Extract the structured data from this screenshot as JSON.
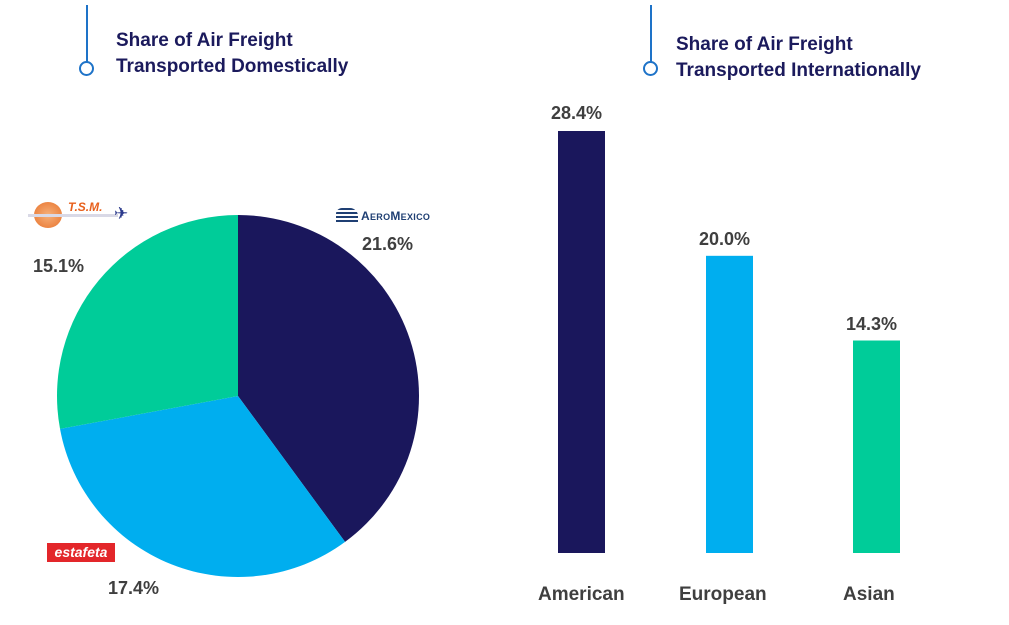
{
  "chart_data": [
    {
      "type": "pie",
      "title": "Share of Air Freight Transported Domestically",
      "title_lines": [
        "Share of Air Freight",
        "Transported Domestically"
      ],
      "slices": [
        {
          "name": "AeroMexico",
          "value": 21.6,
          "label": "21.6%",
          "color": "#1a175c"
        },
        {
          "name": "Estafeta",
          "value": 17.4,
          "label": "17.4%",
          "color": "#00aeef"
        },
        {
          "name": "T.S.M.",
          "value": 15.1,
          "label": "15.1%",
          "color": "#00cc99"
        }
      ]
    },
    {
      "type": "bar",
      "title": "Share of Air Freight Transported Internationally",
      "title_lines": [
        "Share of Air Freight",
        "Transported Internationally"
      ],
      "categories": [
        "American",
        "European",
        "Asian"
      ],
      "values": [
        28.4,
        20.0,
        14.3
      ],
      "labels": [
        "28.4%",
        "20.0%",
        "14.3%"
      ],
      "colors": [
        "#1a175c",
        "#00aeef",
        "#00cc99"
      ],
      "ylim": [
        0,
        28.4
      ]
    }
  ],
  "logos": {
    "tsm": "T.S.M.",
    "aeromexico": "AeroMexico",
    "estafeta": "estafeta"
  }
}
